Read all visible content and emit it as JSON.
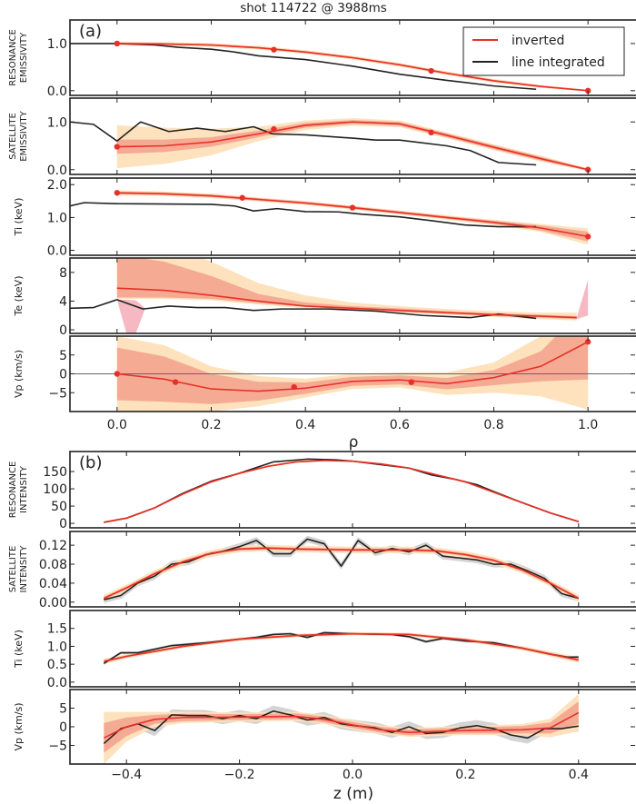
{
  "title": "shot 114722 @ 3988ms",
  "colors": {
    "inverted": "#e8302a",
    "line_integrated": "#222222",
    "band_inner": "#f5ab93",
    "band_outer": "#fde2bd",
    "band_extra": "#f6b8c3",
    "band_line_integrated": "#d4d4d4",
    "zero_line": "#666666"
  },
  "chart_data": [
    {
      "type": "line",
      "panel_label": "(a)",
      "ylabel": [
        "RESONANCE",
        "EMISSIVITY"
      ],
      "xlim": [
        -0.1,
        1.1
      ],
      "ylim": [
        -0.1,
        1.5
      ],
      "ytick_labels": [
        "0.0",
        "1.0"
      ],
      "legend": {
        "position": "top-right",
        "entries": [
          "inverted",
          "line integrated"
        ]
      },
      "inverted": {
        "x": [
          0,
          0.1,
          0.2,
          0.3,
          0.4,
          0.5,
          0.6,
          0.7,
          0.8,
          0.9,
          1.0
        ],
        "y": [
          1.0,
          0.99,
          0.97,
          0.91,
          0.82,
          0.7,
          0.55,
          0.37,
          0.21,
          0.09,
          0.0
        ],
        "band_inner": [
          0.02,
          0.02,
          0.02,
          0.02,
          0.02,
          0.02,
          0.02,
          0.02,
          0.02,
          0.02,
          0.01
        ],
        "band_outer": [
          0.04,
          0.04,
          0.04,
          0.04,
          0.04,
          0.04,
          0.04,
          0.04,
          0.04,
          0.03,
          0.02
        ]
      },
      "knots": {
        "x": [
          0,
          0.333,
          0.667,
          1.0
        ],
        "y": [
          1.0,
          0.87,
          0.42,
          0.0
        ]
      },
      "line_integrated": {
        "x": [
          -0.1,
          0,
          0.08,
          0.13,
          0.2,
          0.25,
          0.3,
          0.4,
          0.5,
          0.6,
          0.7,
          0.8,
          0.89
        ],
        "y": [
          1.0,
          1.0,
          0.97,
          0.92,
          0.88,
          0.82,
          0.74,
          0.66,
          0.52,
          0.35,
          0.22,
          0.1,
          0.03
        ]
      }
    },
    {
      "type": "line",
      "ylabel": [
        "SATELLITE",
        "EMISSIVITY"
      ],
      "xlim": [
        -0.1,
        1.1
      ],
      "ylim": [
        -0.1,
        1.5
      ],
      "ytick_labels": [
        "0.0",
        "1.0"
      ],
      "inverted": {
        "x": [
          0,
          0.1,
          0.2,
          0.3,
          0.4,
          0.5,
          0.6,
          0.7,
          0.8,
          0.9,
          1.0
        ],
        "y": [
          0.48,
          0.5,
          0.58,
          0.75,
          0.93,
          1.0,
          0.96,
          0.72,
          0.47,
          0.23,
          0.0
        ],
        "band_inner": [
          0.15,
          0.13,
          0.1,
          0.07,
          0.05,
          0.04,
          0.04,
          0.04,
          0.04,
          0.04,
          0.02
        ],
        "band_outer": [
          0.45,
          0.38,
          0.28,
          0.15,
          0.1,
          0.08,
          0.07,
          0.06,
          0.06,
          0.06,
          0.03
        ]
      },
      "knots": {
        "x": [
          0,
          0.333,
          0.667,
          1.0
        ],
        "y": [
          0.48,
          0.85,
          0.78,
          0.0
        ]
      },
      "line_integrated": {
        "x": [
          -0.1,
          -0.05,
          0,
          0.05,
          0.11,
          0.17,
          0.23,
          0.29,
          0.33,
          0.4,
          0.5,
          0.55,
          0.6,
          0.7,
          0.75,
          0.81,
          0.89
        ],
        "y": [
          1.0,
          0.95,
          0.6,
          1.0,
          0.8,
          0.87,
          0.8,
          0.9,
          0.75,
          0.73,
          0.66,
          0.62,
          0.62,
          0.5,
          0.4,
          0.15,
          0.1
        ]
      }
    },
    {
      "type": "line",
      "ylabel": [
        "Ti (keV)"
      ],
      "xlim": [
        -0.1,
        1.1
      ],
      "ylim": [
        -0.15,
        2.2
      ],
      "ytick_labels": [
        "0.0",
        "1.0",
        "2.0"
      ],
      "inverted": {
        "x": [
          0,
          0.1,
          0.2,
          0.3,
          0.4,
          0.5,
          0.6,
          0.7,
          0.8,
          0.9,
          1.0
        ],
        "y": [
          1.75,
          1.72,
          1.66,
          1.55,
          1.44,
          1.3,
          1.15,
          1.0,
          0.85,
          0.68,
          0.42
        ],
        "band_inner": [
          0.04,
          0.04,
          0.04,
          0.04,
          0.04,
          0.04,
          0.04,
          0.04,
          0.05,
          0.08,
          0.15
        ],
        "band_outer": [
          0.08,
          0.07,
          0.07,
          0.06,
          0.06,
          0.06,
          0.06,
          0.07,
          0.08,
          0.12,
          0.25
        ]
      },
      "knots": {
        "x": [
          0,
          0.266,
          0.5,
          1.0
        ],
        "y": [
          1.75,
          1.6,
          1.3,
          0.42
        ]
      },
      "line_integrated": {
        "x": [
          -0.1,
          -0.07,
          0,
          0.2,
          0.25,
          0.29,
          0.34,
          0.4,
          0.47,
          0.52,
          0.6,
          0.67,
          0.74,
          0.81,
          0.89
        ],
        "y": [
          1.35,
          1.45,
          1.42,
          1.4,
          1.35,
          1.2,
          1.27,
          1.18,
          1.17,
          1.1,
          1.02,
          0.9,
          0.77,
          0.72,
          0.72
        ]
      }
    },
    {
      "type": "line",
      "ylabel": [
        "Te (keV)"
      ],
      "xlim": [
        -0.1,
        1.1
      ],
      "ylim": [
        -0.5,
        10
      ],
      "ytick_labels": [
        "0",
        "4",
        "8"
      ],
      "inverted": {
        "x": [
          0,
          0.1,
          0.2,
          0.3,
          0.4,
          0.5,
          0.6,
          0.7,
          0.8,
          0.9,
          0.976
        ],
        "y": [
          5.8,
          5.5,
          4.8,
          4.0,
          3.3,
          3.0,
          2.7,
          2.4,
          2.1,
          1.9,
          1.7
        ],
        "band_inner_lo": [
          4.5,
          4.5,
          4.3,
          3.7,
          3.2,
          2.8,
          2.5,
          2.2,
          1.9,
          1.7,
          1.5
        ],
        "band_inner_hi": [
          10.5,
          9.5,
          7.5,
          5.0,
          3.8,
          3.3,
          3.0,
          2.6,
          2.3,
          2.1,
          1.9
        ],
        "band_outer_lo": [
          4.3,
          4.3,
          4.1,
          3.5,
          3.0,
          2.7,
          2.4,
          2.1,
          1.8,
          1.5,
          1.3
        ],
        "band_outer_hi": [
          12,
          12,
          9.5,
          6.5,
          4.8,
          3.8,
          3.3,
          2.9,
          2.6,
          2.4,
          2.4
        ]
      },
      "extra_bands": [
        {
          "x": [
            0,
            0.02,
            0.04,
            0.06
          ],
          "lo": [
            4.2,
            -0.5,
            -0.5,
            3.0
          ],
          "hi": [
            4.2,
            4.2,
            4.1,
            3.0
          ]
        },
        {
          "x": [
            0.976,
            1.0
          ],
          "lo": [
            1.5,
            2.0
          ],
          "hi": [
            1.7,
            7.0
          ]
        }
      ],
      "line_integrated": {
        "x": [
          -0.1,
          -0.05,
          0,
          0.055,
          0.11,
          0.17,
          0.23,
          0.29,
          0.35,
          0.45,
          0.55,
          0.6,
          0.65,
          0.75,
          0.81,
          0.89
        ],
        "y": [
          3.0,
          3.1,
          4.2,
          2.9,
          3.3,
          3.1,
          3.1,
          2.7,
          2.9,
          2.9,
          2.6,
          2.3,
          2.0,
          1.7,
          2.2,
          1.6
        ]
      }
    },
    {
      "type": "line",
      "ylabel": [
        "Vp (km/s)"
      ],
      "xlim": [
        -0.1,
        1.1
      ],
      "ylim": [
        -10,
        10
      ],
      "ytick_labels": [
        "−5",
        "0",
        "5"
      ],
      "zero_line": true,
      "inverted": {
        "x": [
          0,
          0.1,
          0.2,
          0.3,
          0.4,
          0.5,
          0.6,
          0.7,
          0.8,
          0.9,
          1.0
        ],
        "y": [
          0,
          -1.4,
          -4.0,
          -4.6,
          -3.8,
          -2.0,
          -1.6,
          -2.6,
          -1.0,
          2.0,
          8.5
        ],
        "band_inner": [
          7,
          6,
          4,
          2.5,
          1.5,
          1.2,
          1.2,
          1.5,
          2,
          4,
          10
        ],
        "band_outer": [
          10,
          9,
          6,
          4,
          2.5,
          2,
          2,
          3,
          4,
          8,
          18
        ]
      },
      "knots": {
        "x": [
          0,
          0.124,
          0.376,
          0.625,
          1.0
        ],
        "y": [
          0,
          -2.2,
          -3.5,
          -2.2,
          8.5
        ]
      },
      "xtick_labels": [
        "0.0",
        "0.2",
        "0.4",
        "0.6",
        "0.8",
        "1.0"
      ],
      "xlabel": "ρ"
    },
    {
      "type": "line",
      "panel_label": "(b)",
      "ylabel": [
        "RESONANCE",
        "INTENSITY"
      ],
      "xlim": [
        -0.5,
        0.5
      ],
      "ylim": [
        -13,
        208
      ],
      "ytick_labels": [
        "0",
        "50",
        "100",
        "150"
      ],
      "inverted": {
        "x": [
          -0.44,
          -0.4,
          -0.35,
          -0.3,
          -0.25,
          -0.2,
          -0.15,
          -0.1,
          -0.05,
          0,
          0.05,
          0.1,
          0.15,
          0.2,
          0.25,
          0.3,
          0.35,
          0.4
        ],
        "y": [
          3,
          15,
          45,
          85,
          120,
          145,
          165,
          178,
          182,
          180,
          172,
          160,
          140,
          120,
          90,
          60,
          30,
          5
        ],
        "band_inner": [
          2,
          2,
          2,
          2,
          2,
          2,
          2,
          2,
          2,
          2,
          2,
          2,
          2,
          2,
          2,
          2,
          2,
          2
        ],
        "band_outer": [
          3,
          3,
          3,
          3,
          3,
          3,
          3,
          3,
          3,
          3,
          3,
          3,
          3,
          3,
          3,
          3,
          3,
          3
        ]
      },
      "line_integrated": {
        "x": [
          -0.44,
          -0.4,
          -0.35,
          -0.3,
          -0.25,
          -0.2,
          -0.14,
          -0.08,
          -0.03,
          0,
          0.05,
          0.1,
          0.14,
          0.18,
          0.22,
          0.25,
          0.3,
          0.35,
          0.4
        ],
        "y": [
          3,
          15,
          45,
          87,
          122,
          145,
          178,
          186,
          184,
          180,
          170,
          160,
          140,
          128,
          112,
          92,
          60,
          30,
          5
        ],
        "err": 2
      }
    },
    {
      "type": "line",
      "ylabel": [
        "SATELLITE",
        "INTENSITY"
      ],
      "xlim": [
        -0.5,
        0.5
      ],
      "ylim": [
        -0.01,
        0.149
      ],
      "ytick_labels": [
        "0.00",
        "0.04",
        "0.08",
        "0.12"
      ],
      "inverted": {
        "x": [
          -0.44,
          -0.4,
          -0.35,
          -0.3,
          -0.25,
          -0.2,
          -0.15,
          -0.1,
          0,
          0.1,
          0.15,
          0.2,
          0.25,
          0.3,
          0.35,
          0.4
        ],
        "y": [
          0.008,
          0.03,
          0.06,
          0.085,
          0.103,
          0.112,
          0.114,
          0.112,
          0.11,
          0.11,
          0.108,
          0.1,
          0.088,
          0.068,
          0.04,
          0.008
        ],
        "band_inner": [
          0.003,
          0.003,
          0.003,
          0.003,
          0.003,
          0.003,
          0.003,
          0.003,
          0.003,
          0.003,
          0.003,
          0.003,
          0.003,
          0.003,
          0.003,
          0.003
        ],
        "band_outer": [
          0.007,
          0.007,
          0.007,
          0.007,
          0.007,
          0.007,
          0.007,
          0.007,
          0.007,
          0.007,
          0.007,
          0.007,
          0.007,
          0.007,
          0.007,
          0.007
        ]
      },
      "line_integrated": {
        "x": [
          -0.44,
          -0.41,
          -0.38,
          -0.35,
          -0.32,
          -0.29,
          -0.26,
          -0.23,
          -0.2,
          -0.17,
          -0.14,
          -0.11,
          -0.08,
          -0.05,
          -0.02,
          0.01,
          0.04,
          0.07,
          0.1,
          0.13,
          0.16,
          0.19,
          0.22,
          0.25,
          0.28,
          0.31,
          0.34,
          0.37,
          0.4
        ],
        "y": [
          0.005,
          0.014,
          0.04,
          0.055,
          0.08,
          0.085,
          0.1,
          0.107,
          0.117,
          0.13,
          0.102,
          0.102,
          0.133,
          0.123,
          0.076,
          0.13,
          0.104,
          0.113,
          0.106,
          0.12,
          0.097,
          0.093,
          0.089,
          0.08,
          0.08,
          0.066,
          0.05,
          0.018,
          0.008
        ],
        "err": 0.007
      }
    },
    {
      "type": "line",
      "ylabel": [
        "Ti (keV)"
      ],
      "xlim": [
        -0.5,
        0.5
      ],
      "ylim": [
        -0.13,
        2.0
      ],
      "ytick_labels": [
        "0.0",
        "0.5",
        "1.0",
        "1.5"
      ],
      "inverted": {
        "x": [
          -0.44,
          -0.4,
          -0.3,
          -0.2,
          -0.1,
          0,
          0.1,
          0.2,
          0.3,
          0.4
        ],
        "y": [
          0.58,
          0.72,
          1.0,
          1.2,
          1.3,
          1.35,
          1.33,
          1.18,
          0.95,
          0.62
        ],
        "band_inner": [
          0.04,
          0.03,
          0.03,
          0.03,
          0.03,
          0.03,
          0.03,
          0.03,
          0.03,
          0.04
        ],
        "band_outer": [
          0.08,
          0.06,
          0.05,
          0.05,
          0.05,
          0.05,
          0.05,
          0.05,
          0.06,
          0.08
        ]
      },
      "line_integrated": {
        "x": [
          -0.44,
          -0.41,
          -0.38,
          -0.32,
          -0.26,
          -0.2,
          -0.17,
          -0.14,
          -0.11,
          -0.08,
          -0.05,
          0,
          0.07,
          0.1,
          0.13,
          0.16,
          0.2,
          0.25,
          0.3,
          0.35,
          0.38,
          0.4
        ],
        "y": [
          0.52,
          0.82,
          0.82,
          1.02,
          1.1,
          1.2,
          1.25,
          1.33,
          1.35,
          1.25,
          1.38,
          1.35,
          1.33,
          1.27,
          1.13,
          1.22,
          1.15,
          1.1,
          0.95,
          0.78,
          0.7,
          0.7
        ],
        "err": 0.04
      }
    },
    {
      "type": "line",
      "ylabel": [
        "Vp (km/s)"
      ],
      "xlim": [
        -0.5,
        0.5
      ],
      "ylim": [
        -10,
        10
      ],
      "ytick_labels": [
        "−5",
        "0",
        "5"
      ],
      "inverted": {
        "x": [
          -0.44,
          -0.4,
          -0.35,
          -0.3,
          -0.2,
          -0.1,
          -0.05,
          0,
          0.05,
          0.1,
          0.2,
          0.3,
          0.35,
          0.4
        ],
        "y": [
          -3,
          0,
          2,
          2.5,
          2.6,
          2.8,
          2,
          0.5,
          -0.8,
          -1.5,
          -1.0,
          -0.8,
          -0.3,
          3.8
        ],
        "band_inner": [
          4,
          2.5,
          1.2,
          1,
          0.8,
          0.8,
          0.8,
          0.8,
          0.8,
          0.8,
          0.8,
          1,
          1.5,
          3
        ],
        "band_outer": [
          7,
          4,
          2,
          1.5,
          1.2,
          1.2,
          1.2,
          1.2,
          1.2,
          1.2,
          1.2,
          1.5,
          2.5,
          5
        ]
      },
      "line_integrated": {
        "x": [
          -0.44,
          -0.41,
          -0.38,
          -0.35,
          -0.32,
          -0.29,
          -0.26,
          -0.23,
          -0.2,
          -0.17,
          -0.14,
          -0.11,
          -0.08,
          -0.05,
          -0.02,
          0.01,
          0.04,
          0.07,
          0.1,
          0.13,
          0.16,
          0.19,
          0.22,
          0.25,
          0.28,
          0.31,
          0.34,
          0.37,
          0.4
        ],
        "y": [
          -4.5,
          -0.5,
          0.8,
          -1.0,
          3.2,
          3.0,
          3.0,
          2.2,
          3.0,
          2.2,
          4.2,
          3.2,
          1.8,
          2.5,
          0.8,
          0.2,
          -0.3,
          -1.5,
          0,
          -1.8,
          -1.5,
          -0.3,
          0.3,
          -0.5,
          -2.2,
          -3.0,
          -0.5,
          -0.5,
          0.2
        ],
        "err": 1.5
      },
      "xtick_labels": [
        "−0.4",
        "−0.2",
        "0.0",
        "0.2",
        "0.4"
      ],
      "xlabel": "z (m)"
    }
  ]
}
